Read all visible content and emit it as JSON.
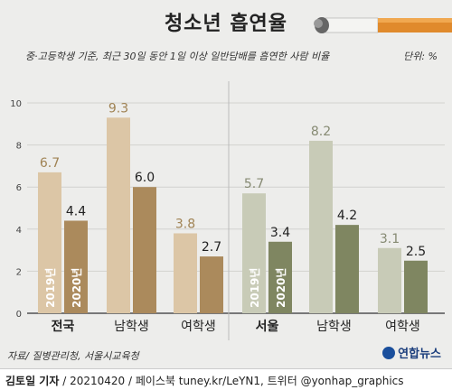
{
  "header": {
    "title": "청소년 흡연율",
    "subtitle": "중·고등학생 기준, 최근 30일 동안 1일 이상 일반담배를 흡연한 사람 비율",
    "unit": "단위: %"
  },
  "footer": {
    "source": "자료/ 질병관리청, 서울시교육청",
    "author": "김토일 기자",
    "credit_rest": " / 20210420 / 페이스북 tuney.kr/LeYN1, 트위터 @yonhap_graphics",
    "logo": "연합뉴스"
  },
  "chart_data": {
    "type": "bar",
    "title": "청소년 흡연율",
    "ylim": [
      0,
      10
    ],
    "yticks": [
      0,
      2,
      4,
      6,
      8,
      10
    ],
    "grid": true,
    "series_labels": [
      "2019년",
      "2020년"
    ],
    "colors": {
      "national_2019": "#dcc6a6",
      "national_2020": "#ab8a5c",
      "seoul_2019": "#c8cbb7",
      "seoul_2020": "#7f8661",
      "label_2019_national": "#a08354",
      "label_2019_seoul": "#868a73"
    },
    "groups": [
      {
        "name": "전국",
        "categories": [
          {
            "label": "전국",
            "bold": true,
            "values": [
              6.7,
              4.4
            ]
          },
          {
            "label": "남학생",
            "bold": false,
            "values": [
              9.3,
              6.0
            ]
          },
          {
            "label": "여학생",
            "bold": false,
            "values": [
              3.8,
              2.7
            ]
          }
        ]
      },
      {
        "name": "서울",
        "categories": [
          {
            "label": "서울",
            "bold": true,
            "values": [
              5.7,
              3.4
            ]
          },
          {
            "label": "남학생",
            "bold": false,
            "values": [
              8.2,
              4.2
            ]
          },
          {
            "label": "여학생",
            "bold": false,
            "values": [
              3.1,
              2.5
            ]
          }
        ]
      }
    ],
    "value_labels": [
      [
        "6.7",
        "4.4",
        "9.3",
        "6.0",
        "3.8",
        "2.7"
      ],
      [
        "5.7",
        "3.4",
        "8.2",
        "4.2",
        "3.1",
        "2.5"
      ]
    ]
  }
}
